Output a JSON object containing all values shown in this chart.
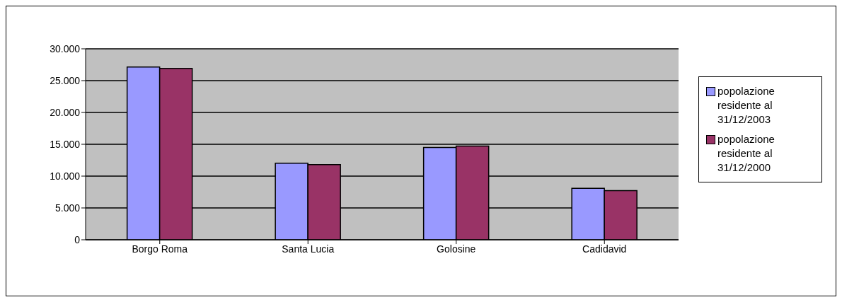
{
  "chart_data": {
    "type": "bar",
    "categories": [
      "Borgo Roma",
      "Santa Lucia",
      "Golosine",
      "Cadidavid"
    ],
    "series": [
      {
        "name": "popolazione residente al 31/12/2003",
        "color": "#9999ff",
        "values": [
          27150,
          12020,
          14500,
          8070
        ]
      },
      {
        "name": "popolazione residente al 31/12/2000",
        "color": "#993366",
        "values": [
          26930,
          11800,
          14730,
          7710
        ]
      }
    ],
    "ylim": [
      0,
      30000
    ],
    "yticks": [
      {
        "value": 0,
        "label": "0"
      },
      {
        "value": 5000,
        "label": "5.000"
      },
      {
        "value": 10000,
        "label": "10.000"
      },
      {
        "value": 15000,
        "label": "15.000"
      },
      {
        "value": 20000,
        "label": "20.000"
      },
      {
        "value": 25000,
        "label": "25.000"
      },
      {
        "value": 30000,
        "label": "30.000"
      }
    ],
    "grid": "y",
    "legend": "right"
  }
}
